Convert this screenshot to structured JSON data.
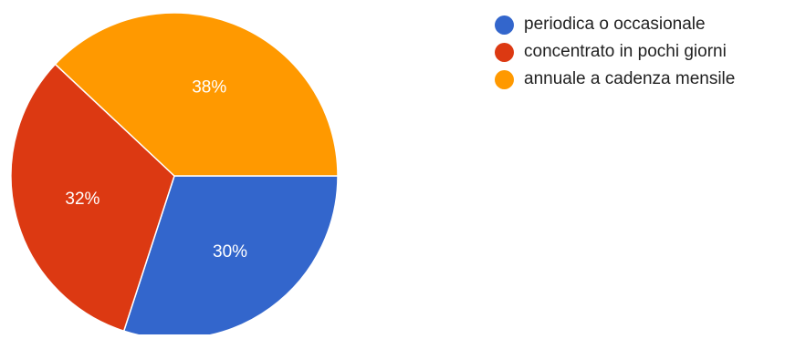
{
  "chart_data": {
    "type": "pie",
    "slices": [
      {
        "label": "periodica o occasionale",
        "value": 30,
        "display": "30%",
        "color": "#3366CC"
      },
      {
        "label": "concentrato in pochi giorni",
        "value": 32,
        "display": "32%",
        "color": "#DC3912"
      },
      {
        "label": "annuale a cadenza mensile",
        "value": 38,
        "display": "38%",
        "color": "#FF9900"
      }
    ],
    "legend": {
      "position": "top-right"
    }
  }
}
